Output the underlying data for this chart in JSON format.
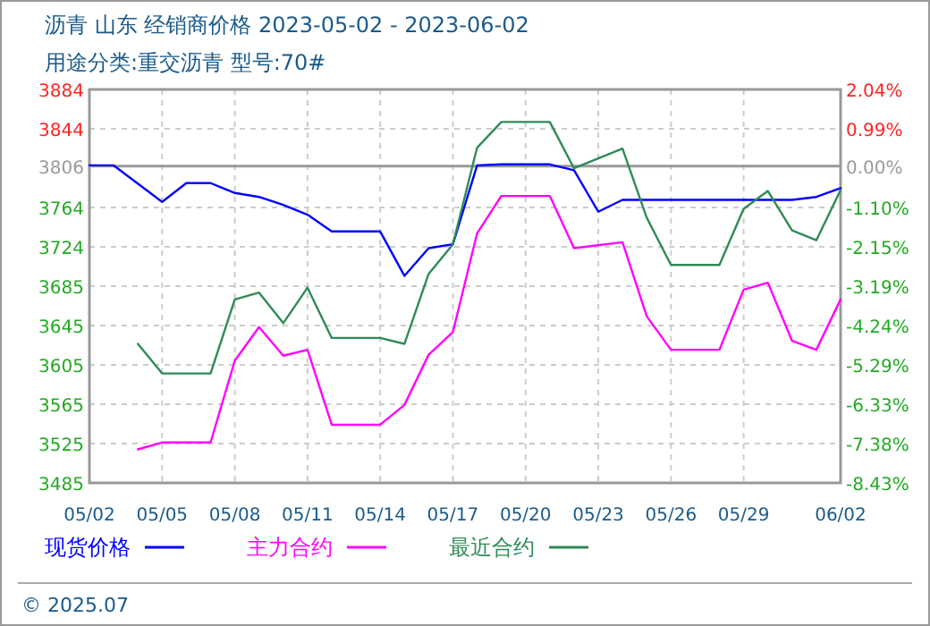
{
  "chart_data": {
    "type": "line",
    "title": "沥青  山东 经销商价格 2023-05-02 - 2023-06-02",
    "subtitle": "用途分类:重交沥青 型号:70#",
    "series": [
      {
        "name": "现货价格",
        "color": "#0000ff",
        "x": [
          "--05-02",
          "--05-03",
          "--05-05",
          "--05-06",
          "--05-07",
          "--05-08",
          "--05-09",
          "--05-10",
          "--05-11",
          "--05-12",
          "--05-14",
          "--05-15",
          "--05-16",
          "--05-17",
          "--05-18",
          "--05-19",
          "--05-21",
          "--05-22",
          "--05-23",
          "--05-24",
          "--05-31",
          "--06-01",
          "--06-02"
        ],
        "values": [
          3807,
          3807,
          3770,
          3789,
          3789,
          3779,
          3775,
          3767,
          3757,
          3740,
          3740,
          3695,
          3723,
          3727,
          3807,
          3808,
          3808,
          3802,
          3760,
          3772,
          3772,
          3775,
          3784
        ]
      },
      {
        "name": "主力合约",
        "color": "#ff00ff",
        "x": [
          "--05-04",
          "--05-05",
          "--05-07",
          "--05-08",
          "--05-09",
          "--05-10",
          "--05-11",
          "--05-12",
          "--05-14",
          "--05-15",
          "--05-16",
          "--05-17",
          "--05-18",
          "--05-19",
          "--05-21",
          "--05-22",
          "--05-24",
          "--05-25",
          "--05-26",
          "--05-28",
          "--05-29",
          "--05-30",
          "--05-31",
          "--06-01",
          "--06-02"
        ],
        "values": [
          3519,
          3526,
          3526,
          3609,
          3643,
          3614,
          3620,
          3544,
          3544,
          3564,
          3615,
          3638,
          3738,
          3776,
          3776,
          3723,
          3729,
          3654,
          3620,
          3620,
          3681,
          3688,
          3629,
          3620,
          3671
        ]
      },
      {
        "name": "最近合约",
        "color": "#2e8b57",
        "x": [
          "--05-04",
          "--05-05",
          "--05-07",
          "--05-08",
          "--05-09",
          "--05-10",
          "--05-11",
          "--05-12",
          "--05-14",
          "--05-15",
          "--05-16",
          "--05-17",
          "--05-18",
          "--05-19",
          "--05-21",
          "--05-22",
          "--05-24",
          "--05-25",
          "--05-26",
          "--05-28",
          "--05-29",
          "--05-30",
          "--05-31",
          "--06-01",
          "--06-02"
        ],
        "values": [
          3626,
          3596,
          3596,
          3671,
          3678,
          3647,
          3683,
          3632,
          3632,
          3626,
          3697,
          3727,
          3825,
          3851,
          3851,
          3804,
          3824,
          3754,
          3706,
          3706,
          3763,
          3781,
          3741,
          3731,
          3782
        ]
      }
    ],
    "xlim": [
      "--05-02",
      "--06-02"
    ],
    "xticks": [
      {
        "value": "--05-02",
        "label": "05/02"
      },
      {
        "value": "--05-05",
        "label": "05/05"
      },
      {
        "value": "--05-08",
        "label": "05/08"
      },
      {
        "value": "--05-11",
        "label": "05/11"
      },
      {
        "value": "--05-14",
        "label": "05/14"
      },
      {
        "value": "--05-17",
        "label": "05/17"
      },
      {
        "value": "--05-20",
        "label": "05/20"
      },
      {
        "value": "--05-23",
        "label": "05/23"
      },
      {
        "value": "--05-26",
        "label": "05/26"
      },
      {
        "value": "--05-29",
        "label": "05/29"
      },
      {
        "value": "--06-02",
        "label": "06/02"
      }
    ],
    "ylim": [
      3485,
      3884
    ],
    "yticks": [
      3485,
      {
        "value": 3524.9,
        "label": "3525"
      },
      {
        "value": 3564.8,
        "label": "3565"
      },
      {
        "value": 3604.7,
        "label": "3605"
      },
      {
        "value": 3644.6,
        "label": "3645"
      },
      {
        "value": 3684.5,
        "label": "3685"
      },
      {
        "value": 3724.4,
        "label": "3724"
      },
      {
        "value": 3764.3,
        "label": "3764"
      },
      {
        "value": 3806,
        "label": "3806"
      },
      {
        "value": 3844.1,
        "label": "3844"
      },
      3884
    ],
    "y2lim": [
      -8.43,
      2.04
    ],
    "y2ticks": [
      {
        "value": -8.43,
        "label": "-8.43%"
      },
      {
        "value": -7.383,
        "label": "-7.38%"
      },
      {
        "value": -6.33,
        "label": "-6.33%"
      },
      {
        "value": -5.289,
        "label": "-5.29%"
      },
      {
        "value": -4.242,
        "label": "-4.24%"
      },
      {
        "value": -3.195,
        "label": "-3.19%"
      },
      {
        "value": -2.148,
        "label": "-2.15%"
      },
      {
        "value": -1.101,
        "label": "-1.10%"
      },
      {
        "value": 0,
        "label": "0.00%"
      },
      {
        "value": 0.993,
        "label": "0.99%"
      },
      {
        "value": 2.04,
        "label": "2.04%"
      }
    ],
    "ref_lines": [
      {
        "axis": "y2",
        "value": 0,
        "color": "#999999"
      }
    ],
    "grid": true,
    "legend": "bottom",
    "line_style": "solid",
    "marker": "none",
    "annotations": [
      "© 2025.07"
    ]
  }
}
